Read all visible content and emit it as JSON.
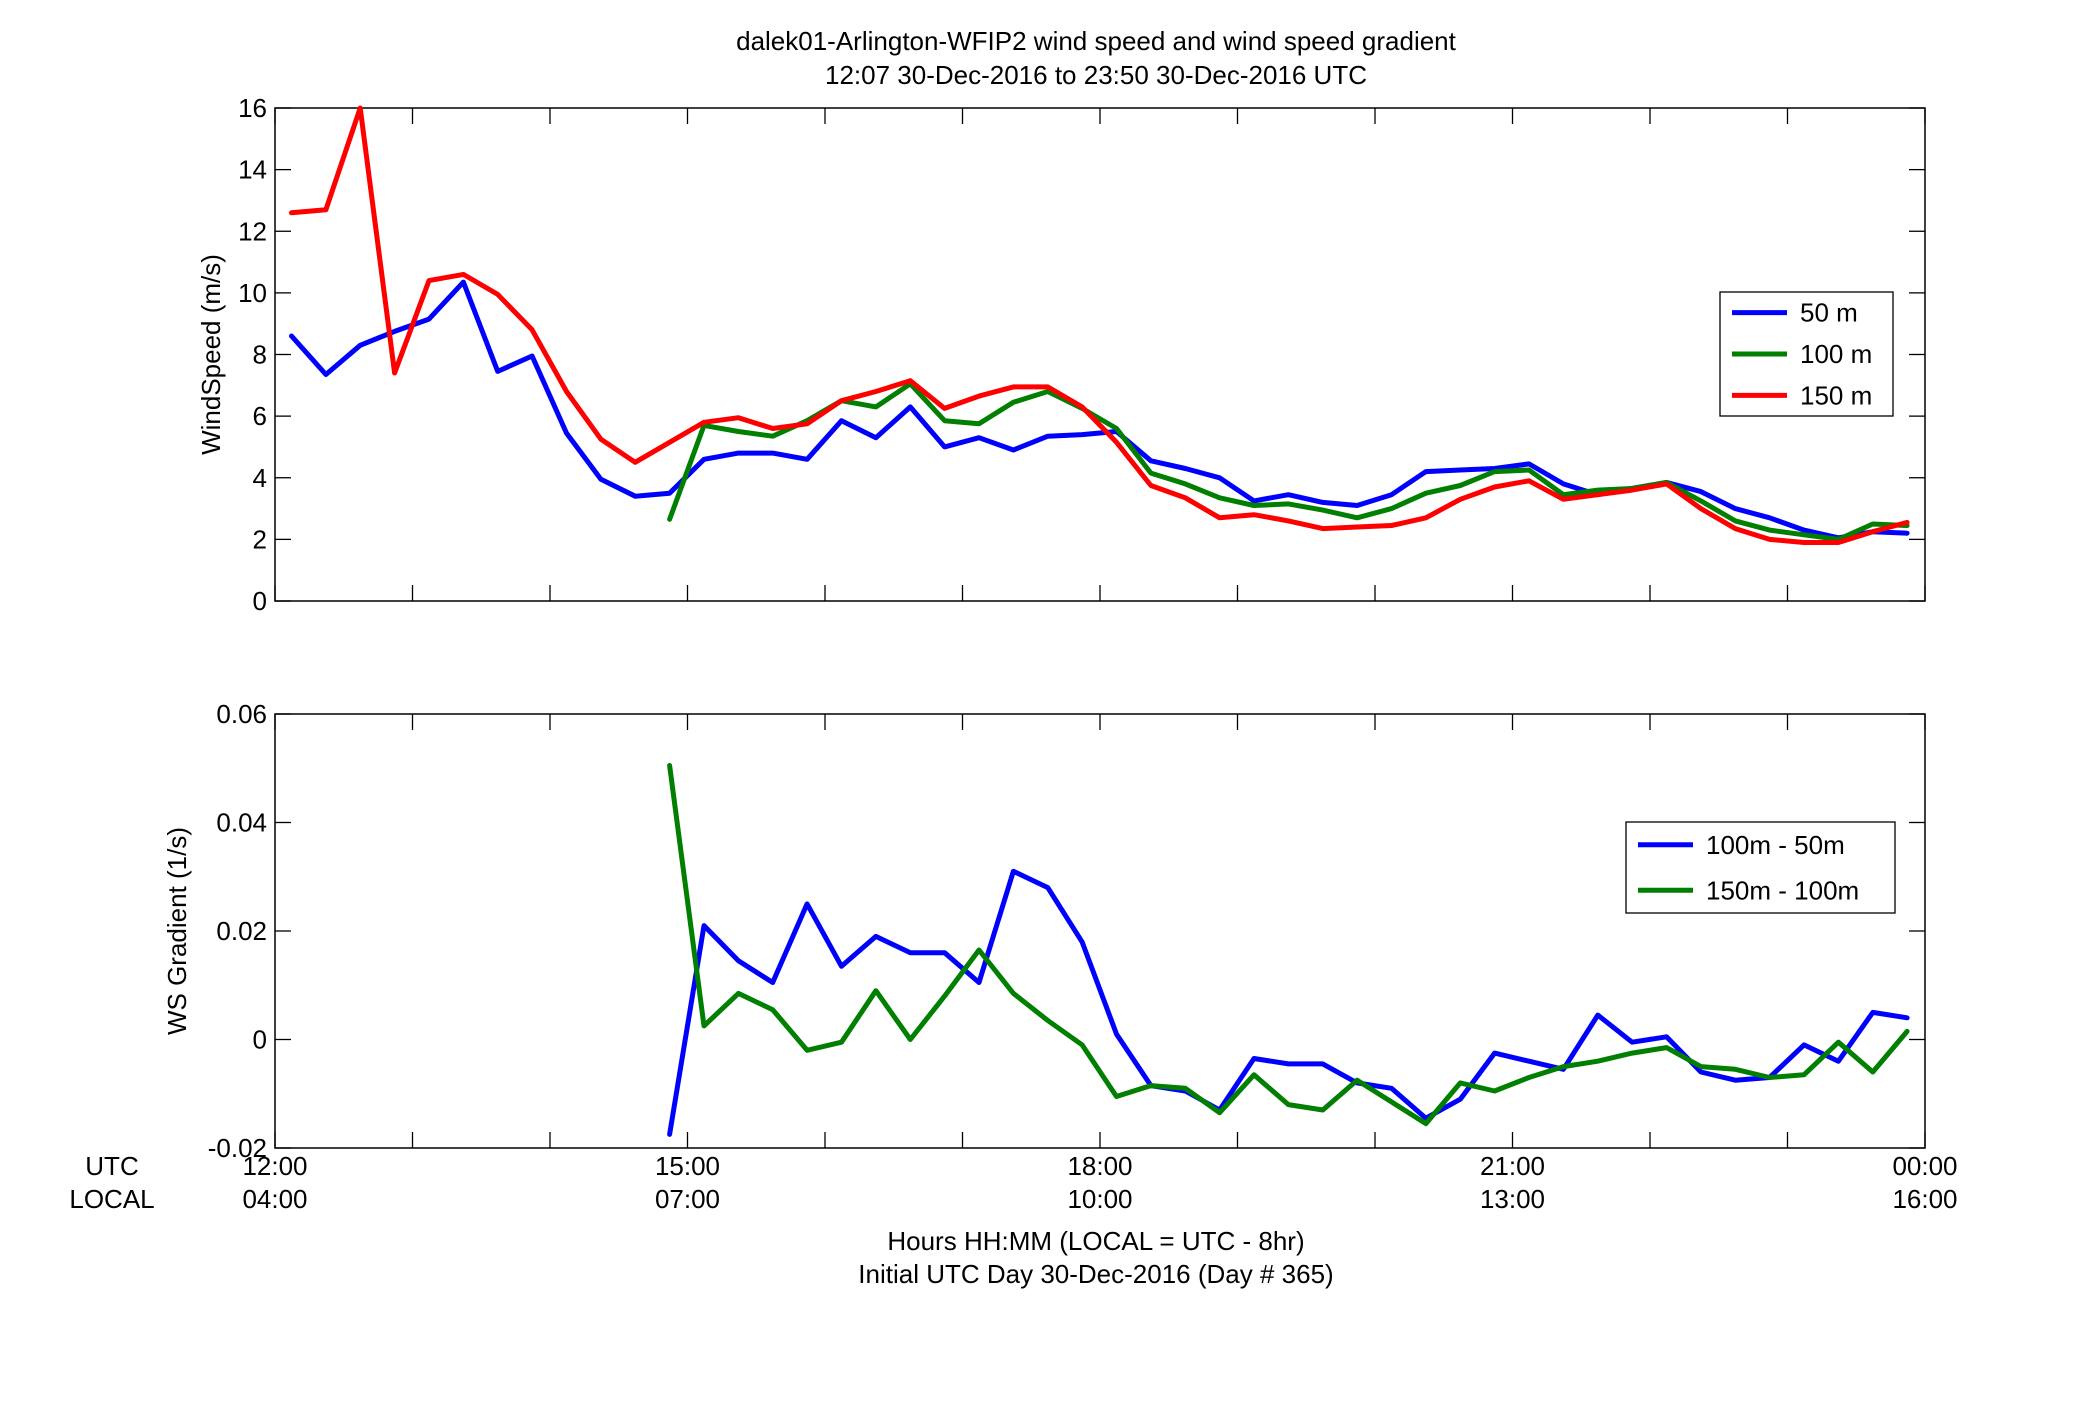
{
  "title_line1": "dalek01-Arlington-WFIP2  wind speed and wind speed gradient",
  "title_line2": "12:07 30-Dec-2016 to 23:50 30-Dec-2016  UTC",
  "xaxis": {
    "row_labels": [
      "UTC",
      "LOCAL"
    ],
    "utc_ticks": [
      "12:00",
      "15:00",
      "18:00",
      "21:00",
      "00:00"
    ],
    "local_ticks": [
      "04:00",
      "07:00",
      "10:00",
      "13:00",
      "16:00"
    ],
    "label_line1": "Hours HH:MM  (LOCAL = UTC - 8hr)",
    "label_line2": "Initial UTC Day 30-Dec-2016 (Day # 365)"
  },
  "chart_data": [
    {
      "type": "line",
      "ylabel": "WindSpeed (m/s)",
      "xlim": [
        12,
        24
      ],
      "ylim": [
        0,
        16
      ],
      "yticks": [
        0,
        2,
        4,
        6,
        8,
        10,
        12,
        14,
        16
      ],
      "ytick_labels": [
        "0",
        "2",
        "4",
        "6",
        "8",
        "10",
        "12",
        "14",
        "16"
      ],
      "legend_position": "right",
      "series": [
        {
          "name": "50 m",
          "color": "#0000ff",
          "points": [
            [
              12.12,
              8.6
            ],
            [
              12.37,
              7.35
            ],
            [
              12.62,
              8.3
            ],
            [
              12.87,
              8.75
            ],
            [
              13.12,
              9.15
            ],
            [
              13.37,
              10.35
            ],
            [
              13.62,
              7.45
            ],
            [
              13.87,
              7.95
            ],
            [
              14.12,
              5.45
            ],
            [
              14.37,
              3.95
            ],
            [
              14.62,
              3.4
            ],
            [
              14.87,
              3.5
            ],
            [
              15.12,
              4.6
            ],
            [
              15.37,
              4.8
            ],
            [
              15.62,
              4.8
            ],
            [
              15.87,
              4.6
            ],
            [
              16.12,
              5.85
            ],
            [
              16.37,
              5.3
            ],
            [
              16.62,
              6.3
            ],
            [
              16.87,
              5.0
            ],
            [
              17.12,
              5.3
            ],
            [
              17.37,
              4.9
            ],
            [
              17.62,
              5.35
            ],
            [
              17.87,
              5.4
            ],
            [
              18.12,
              5.5
            ],
            [
              18.37,
              4.55
            ],
            [
              18.62,
              4.3
            ],
            [
              18.87,
              4.0
            ],
            [
              19.12,
              3.25
            ],
            [
              19.37,
              3.45
            ],
            [
              19.62,
              3.2
            ],
            [
              19.87,
              3.1
            ],
            [
              20.12,
              3.45
            ],
            [
              20.37,
              4.2
            ],
            [
              20.62,
              4.25
            ],
            [
              20.87,
              4.3
            ],
            [
              21.12,
              4.45
            ],
            [
              21.37,
              3.8
            ],
            [
              21.62,
              3.45
            ],
            [
              21.87,
              3.65
            ],
            [
              22.12,
              3.85
            ],
            [
              22.37,
              3.55
            ],
            [
              22.62,
              3.0
            ],
            [
              22.87,
              2.7
            ],
            [
              23.12,
              2.3
            ],
            [
              23.37,
              2.05
            ],
            [
              23.62,
              2.25
            ],
            [
              23.87,
              2.2
            ]
          ]
        },
        {
          "name": "100 m",
          "color": "#007f00",
          "points": [
            [
              14.87,
              2.65
            ],
            [
              15.12,
              5.7
            ],
            [
              15.37,
              5.5
            ],
            [
              15.62,
              5.35
            ],
            [
              15.87,
              5.85
            ],
            [
              16.12,
              6.5
            ],
            [
              16.37,
              6.3
            ],
            [
              16.62,
              7.05
            ],
            [
              16.87,
              5.85
            ],
            [
              17.12,
              5.75
            ],
            [
              17.37,
              6.45
            ],
            [
              17.62,
              6.8
            ],
            [
              17.87,
              6.25
            ],
            [
              18.12,
              5.6
            ],
            [
              18.37,
              4.15
            ],
            [
              18.62,
              3.8
            ],
            [
              18.87,
              3.35
            ],
            [
              19.12,
              3.1
            ],
            [
              19.37,
              3.15
            ],
            [
              19.62,
              2.95
            ],
            [
              19.87,
              2.7
            ],
            [
              20.12,
              3.0
            ],
            [
              20.37,
              3.5
            ],
            [
              20.62,
              3.75
            ],
            [
              20.87,
              4.2
            ],
            [
              21.12,
              4.25
            ],
            [
              21.37,
              3.45
            ],
            [
              21.62,
              3.6
            ],
            [
              21.87,
              3.65
            ],
            [
              22.12,
              3.85
            ],
            [
              22.37,
              3.25
            ],
            [
              22.62,
              2.6
            ],
            [
              22.87,
              2.3
            ],
            [
              23.12,
              2.15
            ],
            [
              23.37,
              2.0
            ],
            [
              23.62,
              2.5
            ],
            [
              23.87,
              2.45
            ]
          ]
        },
        {
          "name": "150 m",
          "color": "#ff0000",
          "points": [
            [
              12.12,
              12.6
            ],
            [
              12.37,
              12.7
            ],
            [
              12.62,
              16.0
            ],
            [
              12.87,
              7.4
            ],
            [
              13.12,
              10.4
            ],
            [
              13.37,
              10.6
            ],
            [
              13.62,
              9.95
            ],
            [
              13.87,
              8.8
            ],
            [
              14.12,
              6.8
            ],
            [
              14.37,
              5.25
            ],
            [
              14.62,
              4.5
            ],
            [
              14.87,
              5.15
            ],
            [
              15.12,
              5.8
            ],
            [
              15.37,
              5.95
            ],
            [
              15.62,
              5.6
            ],
            [
              15.87,
              5.75
            ],
            [
              16.12,
              6.5
            ],
            [
              16.37,
              6.8
            ],
            [
              16.62,
              7.15
            ],
            [
              16.87,
              6.25
            ],
            [
              17.12,
              6.65
            ],
            [
              17.37,
              6.95
            ],
            [
              17.62,
              6.95
            ],
            [
              17.87,
              6.3
            ],
            [
              18.12,
              5.15
            ],
            [
              18.37,
              3.75
            ],
            [
              18.62,
              3.35
            ],
            [
              18.87,
              2.7
            ],
            [
              19.12,
              2.8
            ],
            [
              19.37,
              2.6
            ],
            [
              19.62,
              2.35
            ],
            [
              19.87,
              2.4
            ],
            [
              20.12,
              2.45
            ],
            [
              20.37,
              2.7
            ],
            [
              20.62,
              3.3
            ],
            [
              20.87,
              3.7
            ],
            [
              21.12,
              3.9
            ],
            [
              21.37,
              3.3
            ],
            [
              21.62,
              3.45
            ],
            [
              21.87,
              3.6
            ],
            [
              22.12,
              3.8
            ],
            [
              22.37,
              3.0
            ],
            [
              22.62,
              2.35
            ],
            [
              22.87,
              2.0
            ],
            [
              23.12,
              1.9
            ],
            [
              23.37,
              1.9
            ],
            [
              23.62,
              2.25
            ],
            [
              23.87,
              2.55
            ]
          ]
        }
      ]
    },
    {
      "type": "line",
      "ylabel": "WS Gradient (1/s)",
      "xlim": [
        12,
        24
      ],
      "ylim": [
        -0.02,
        0.06
      ],
      "yticks": [
        -0.02,
        0,
        0.02,
        0.04,
        0.06
      ],
      "ytick_labels": [
        "-0.02",
        "0",
        "0.02",
        "0.04",
        "0.06"
      ],
      "legend_position": "right",
      "series": [
        {
          "name": "100m - 50m",
          "color": "#0000ff",
          "points": [
            [
              14.87,
              -0.0175
            ],
            [
              15.12,
              0.021
            ],
            [
              15.37,
              0.0145
            ],
            [
              15.62,
              0.0105
            ],
            [
              15.87,
              0.025
            ],
            [
              16.12,
              0.0135
            ],
            [
              16.37,
              0.019
            ],
            [
              16.62,
              0.016
            ],
            [
              16.87,
              0.016
            ],
            [
              17.12,
              0.0105
            ],
            [
              17.37,
              0.031
            ],
            [
              17.62,
              0.028
            ],
            [
              17.87,
              0.018
            ],
            [
              18.12,
              0.001
            ],
            [
              18.37,
              -0.0085
            ],
            [
              18.62,
              -0.0095
            ],
            [
              18.87,
              -0.013
            ],
            [
              19.12,
              -0.0035
            ],
            [
              19.37,
              -0.0045
            ],
            [
              19.62,
              -0.0045
            ],
            [
              19.87,
              -0.008
            ],
            [
              20.12,
              -0.009
            ],
            [
              20.37,
              -0.0145
            ],
            [
              20.62,
              -0.011
            ],
            [
              20.87,
              -0.0025
            ],
            [
              21.12,
              -0.004
            ],
            [
              21.37,
              -0.0055
            ],
            [
              21.62,
              0.0045
            ],
            [
              21.87,
              -0.0005
            ],
            [
              22.12,
              0.0005
            ],
            [
              22.37,
              -0.006
            ],
            [
              22.62,
              -0.0075
            ],
            [
              22.87,
              -0.007
            ],
            [
              23.12,
              -0.001
            ],
            [
              23.37,
              -0.004
            ],
            [
              23.62,
              0.005
            ],
            [
              23.87,
              0.004
            ]
          ]
        },
        {
          "name": "150m - 100m",
          "color": "#007f00",
          "points": [
            [
              14.87,
              0.0505
            ],
            [
              15.12,
              0.0025
            ],
            [
              15.37,
              0.0085
            ],
            [
              15.62,
              0.0055
            ],
            [
              15.87,
              -0.002
            ],
            [
              16.12,
              -0.0005
            ],
            [
              16.37,
              0.009
            ],
            [
              16.62,
              0.0
            ],
            [
              16.87,
              0.008
            ],
            [
              17.12,
              0.0165
            ],
            [
              17.37,
              0.0085
            ],
            [
              17.62,
              0.0035
            ],
            [
              17.87,
              -0.001
            ],
            [
              18.12,
              -0.0105
            ],
            [
              18.37,
              -0.0085
            ],
            [
              18.62,
              -0.009
            ],
            [
              18.87,
              -0.0135
            ],
            [
              19.12,
              -0.0065
            ],
            [
              19.37,
              -0.012
            ],
            [
              19.62,
              -0.013
            ],
            [
              19.87,
              -0.0075
            ],
            [
              20.12,
              -0.0115
            ],
            [
              20.37,
              -0.0155
            ],
            [
              20.62,
              -0.008
            ],
            [
              20.87,
              -0.0095
            ],
            [
              21.12,
              -0.007
            ],
            [
              21.37,
              -0.005
            ],
            [
              21.62,
              -0.004
            ],
            [
              21.87,
              -0.0025
            ],
            [
              22.12,
              -0.0015
            ],
            [
              22.37,
              -0.005
            ],
            [
              22.62,
              -0.0055
            ],
            [
              22.87,
              -0.007
            ],
            [
              23.12,
              -0.0065
            ],
            [
              23.37,
              -0.0005
            ],
            [
              23.62,
              -0.006
            ],
            [
              23.87,
              0.0015
            ]
          ]
        }
      ]
    }
  ]
}
